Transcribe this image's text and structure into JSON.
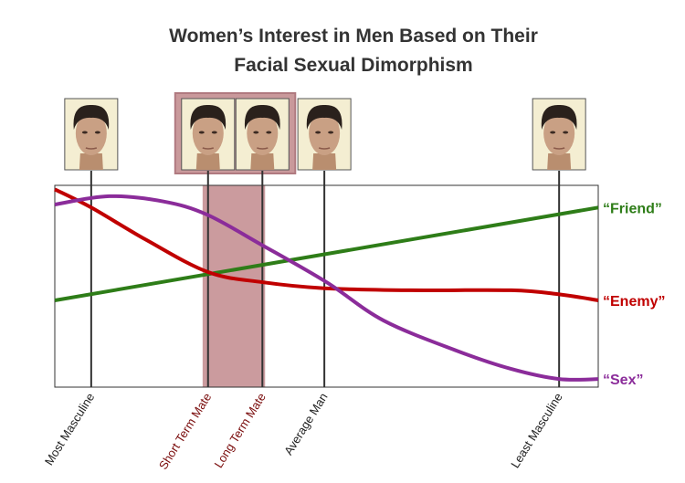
{
  "chart_data": {
    "type": "line",
    "title": [
      "Women’s Interest in Men Based on Their",
      "Facial Sexual Dimorphism"
    ],
    "xlim": [
      0,
      100
    ],
    "ylim": [
      0,
      100
    ],
    "highlight": [
      27.2,
      38.7
    ],
    "markers": [
      {
        "label": "Most Masculine",
        "x": 6.7,
        "color": "#222222"
      },
      {
        "label": "Short Term Mate",
        "x": 28.2,
        "color": "#7a0c0c"
      },
      {
        "label": "Long Term Mate",
        "x": 38.2,
        "color": "#7a0c0c"
      },
      {
        "label": "Average Man",
        "x": 49.6,
        "color": "#222222"
      },
      {
        "label": "Least Masculine",
        "x": 92.8,
        "color": "#222222"
      }
    ],
    "series": [
      {
        "name": "“Friend”",
        "color": "#2e7d18",
        "x": [
          0,
          100
        ],
        "values": [
          43,
          89
        ]
      },
      {
        "name": "“Enemy”",
        "color": "#c00000",
        "x": [
          0,
          6.7,
          16.8,
          28.2,
          38.2,
          49.6,
          65.5,
          84,
          92.8,
          100
        ],
        "values": [
          98,
          89,
          73,
          57,
          52,
          49,
          48,
          48,
          46,
          43
        ]
      },
      {
        "name": "“Sex”",
        "color": "#8b2c9a",
        "x": [
          0,
          10,
          20,
          28,
          38,
          50,
          60.5,
          74,
          84,
          92.8,
          100
        ],
        "values": [
          90.5,
          94.6,
          92,
          85.5,
          70.6,
          52,
          33,
          18,
          9,
          4,
          4
        ]
      }
    ]
  }
}
